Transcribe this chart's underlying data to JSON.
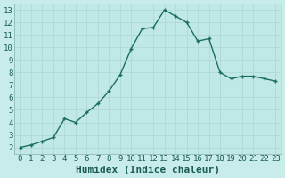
{
  "x": [
    0,
    1,
    2,
    3,
    4,
    5,
    6,
    7,
    8,
    9,
    10,
    11,
    12,
    13,
    14,
    15,
    16,
    17,
    18,
    19,
    20,
    21,
    22,
    23
  ],
  "y": [
    2.0,
    2.2,
    2.5,
    2.8,
    4.3,
    4.0,
    4.8,
    5.5,
    6.5,
    7.8,
    9.9,
    11.5,
    11.6,
    13.0,
    12.5,
    12.0,
    10.5,
    10.7,
    8.0,
    7.5,
    7.7,
    7.7,
    7.5,
    7.3
  ],
  "bg_color": "#c8ece9",
  "plot_bg_color": "#c0e8e4",
  "line_color": "#1a6e64",
  "grid_color": "#b0d8d4",
  "xlabel": "Humidex (Indice chaleur)",
  "ylim": [
    1.5,
    13.5
  ],
  "xlim": [
    -0.5,
    23.5
  ],
  "yticks": [
    2,
    3,
    4,
    5,
    6,
    7,
    8,
    9,
    10,
    11,
    12,
    13
  ],
  "xticks": [
    0,
    1,
    2,
    3,
    4,
    5,
    6,
    7,
    8,
    9,
    10,
    11,
    12,
    13,
    14,
    15,
    16,
    17,
    18,
    19,
    20,
    21,
    22,
    23
  ],
  "markersize": 2.5,
  "linewidth": 1.0,
  "xlabel_fontsize": 8,
  "tick_fontsize": 6.5
}
